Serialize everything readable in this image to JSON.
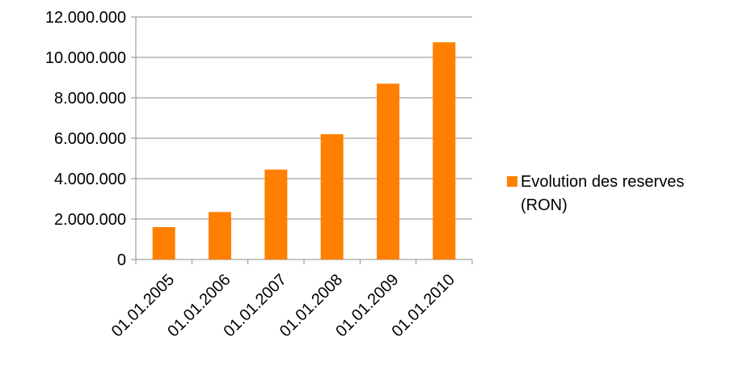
{
  "chart_data": {
    "type": "bar",
    "categories": [
      "01.01.2005",
      "01.01.2006",
      "01.01.2007",
      "01.01.2008",
      "01.01.2009",
      "01.01.2010"
    ],
    "series": [
      {
        "name": "Evolution des reserves (RON)",
        "values": [
          1600000,
          2350000,
          4450000,
          6200000,
          8700000,
          10750000
        ],
        "color": "#ff8000"
      }
    ],
    "y_ticks": [
      "0",
      "2.000.000",
      "4.000.000",
      "6.000.000",
      "8.000.000",
      "10.000.000",
      "12.000.000"
    ],
    "ylim": [
      0,
      12000000
    ],
    "title": "",
    "xlabel": "",
    "ylabel": "",
    "grid": true,
    "legend_position": "right"
  },
  "legend": {
    "line1": "Evolution des reserves",
    "line2": "(RON)"
  }
}
